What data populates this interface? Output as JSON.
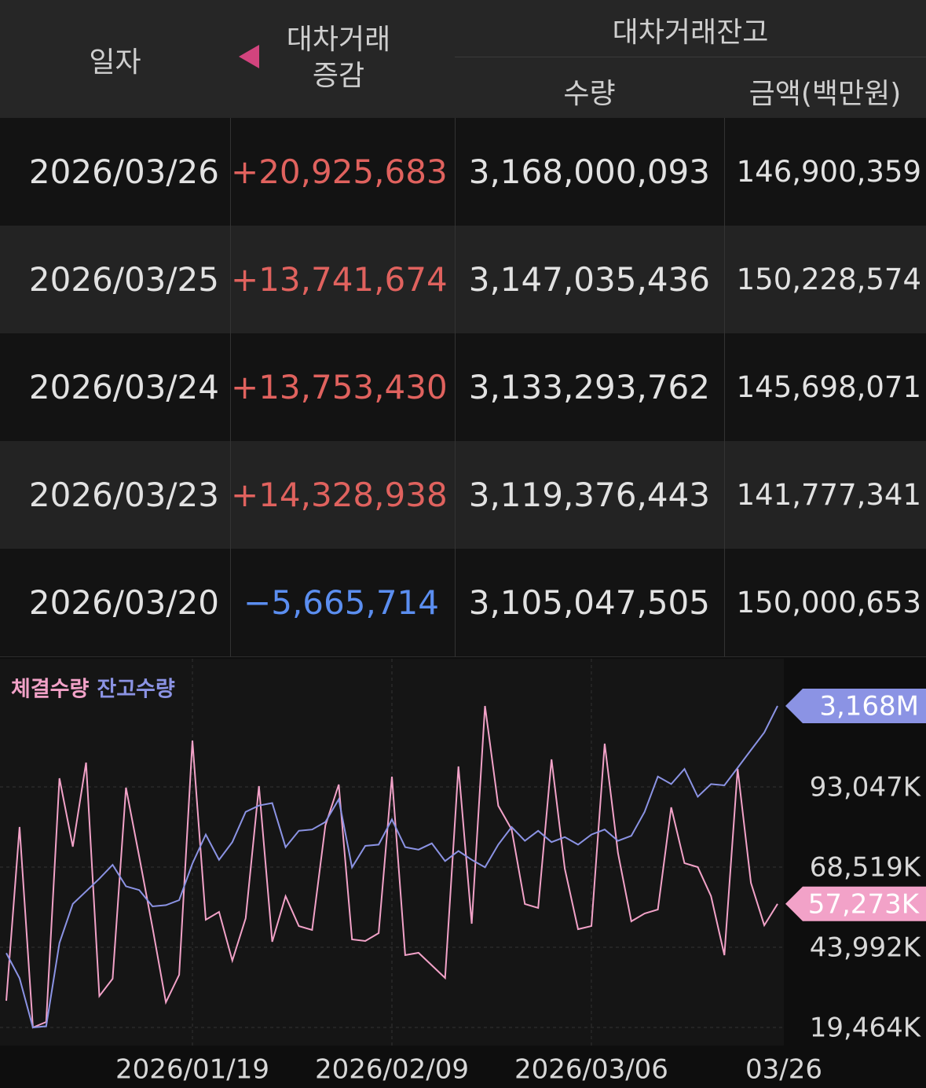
{
  "table": {
    "columns": {
      "date": "일자",
      "change": [
        "대차거래",
        "증감"
      ],
      "balance": "대차거래잔고",
      "quantity": "수량",
      "amount": "금액(백만원)"
    },
    "rows": [
      [
        "2026/03/26",
        "+20,925,683",
        "3,168,000,093",
        "146,900,359"
      ],
      [
        "2026/03/25",
        "+13,741,674",
        "3,147,035,436",
        "150,228,574"
      ],
      [
        "2026/03/24",
        "+13,753,430",
        "3,133,293,762",
        "145,698,071"
      ],
      [
        "2026/03/23",
        "+14,328,938",
        "3,119,376,443",
        "141,777,341"
      ],
      [
        "2026/03/20",
        "−5,665,714",
        "3,105,047,505",
        "150,000,653"
      ]
    ]
  },
  "chart_data": {
    "type": "line",
    "categories": [
      null,
      null,
      null,
      null,
      null,
      null,
      null,
      null,
      null,
      null,
      null,
      null,
      null,
      null,
      "2026/01/19",
      null,
      null,
      null,
      null,
      null,
      null,
      null,
      null,
      null,
      null,
      null,
      null,
      null,
      null,
      "2026/02/09",
      null,
      null,
      null,
      null,
      null,
      null,
      null,
      null,
      null,
      null,
      null,
      null,
      null,
      null,
      "2026/03/06",
      null,
      null,
      null,
      null,
      null,
      null,
      null,
      null,
      null,
      null,
      null,
      null,
      null,
      "03/26"
    ],
    "series": [
      {
        "name": "체결수량",
        "color": "#f2a2c8",
        "values": [
          27640,
          80783,
          19464,
          21147,
          95692,
          74771,
          100501,
          29083,
          34373,
          92806,
          71645,
          50003,
          27159,
          35575,
          107234,
          52408,
          54812,
          39904,
          52889,
          93287,
          45675,
          59622,
          50484,
          49282,
          81264,
          93768,
          46396,
          45915,
          48320,
          96173,
          41587,
          42308,
          38461,
          34613,
          99299,
          51206,
          117815,
          87275,
          80061,
          57217,
          56015,
          101463,
          68038,
          49522,
          50484,
          106272,
          72847,
          51927,
          54332,
          55534,
          86794,
          69721,
          68519,
          59622,
          41587,
          98577,
          63710,
          50725,
          57273
        ],
        "value_labels": [
          null,
          null,
          null,
          null,
          null,
          null,
          null,
          null,
          null,
          null,
          null,
          null,
          null,
          null,
          null,
          null,
          null,
          null,
          null,
          null,
          null,
          null,
          null,
          null,
          null,
          null,
          null,
          null,
          null,
          null,
          null,
          null,
          null,
          null,
          null,
          null,
          null,
          null,
          null,
          null,
          null,
          null,
          null,
          null,
          null,
          null,
          null,
          null,
          null,
          null,
          null,
          null,
          null,
          null,
          null,
          null,
          null,
          null,
          "57,273K"
        ]
      },
      {
        "name": "잔고수량",
        "color": "#8b93e4",
        "axis": "y2",
        "values": [
          2972,
          2952,
          2913,
          2914,
          2980,
          3011,
          3021,
          3031,
          3042,
          3025,
          3022,
          3009,
          3010,
          3014,
          3043,
          3066,
          3046,
          3060,
          3084,
          3089,
          3091,
          3056,
          3069,
          3070,
          3076,
          3094,
          3040,
          3057,
          3058,
          3078,
          3056,
          3054,
          3059,
          3045,
          3053,
          3046,
          3040,
          3058,
          3072,
          3061,
          3069,
          3060,
          3064,
          3058,
          3066,
          3070,
          3061,
          3065,
          3084,
          3112,
          3106,
          3118,
          3096,
          3106,
          3105,
          3119,
          3133,
          3147,
          3168
        ],
        "value_labels": [
          null,
          null,
          null,
          null,
          null,
          null,
          null,
          null,
          null,
          null,
          null,
          null,
          null,
          null,
          null,
          null,
          null,
          null,
          null,
          null,
          null,
          null,
          null,
          null,
          null,
          null,
          null,
          null,
          null,
          null,
          null,
          null,
          null,
          null,
          null,
          null,
          null,
          null,
          null,
          null,
          null,
          null,
          null,
          null,
          null,
          null,
          null,
          null,
          null,
          null,
          null,
          null,
          null,
          null,
          null,
          null,
          null,
          null,
          "3,168M"
        ]
      }
    ],
    "ylim": [
      19464,
      117815
    ],
    "yticks": [
      {
        "value": 19464,
        "label": "19,464K"
      },
      {
        "value": 43992,
        "label": "43,992K"
      },
      {
        "value": 68519,
        "label": "68,519K"
      },
      {
        "value": 93047,
        "label": "93,047K"
      }
    ],
    "y2lim": [
      2913,
      3168
    ],
    "grid": true
  }
}
